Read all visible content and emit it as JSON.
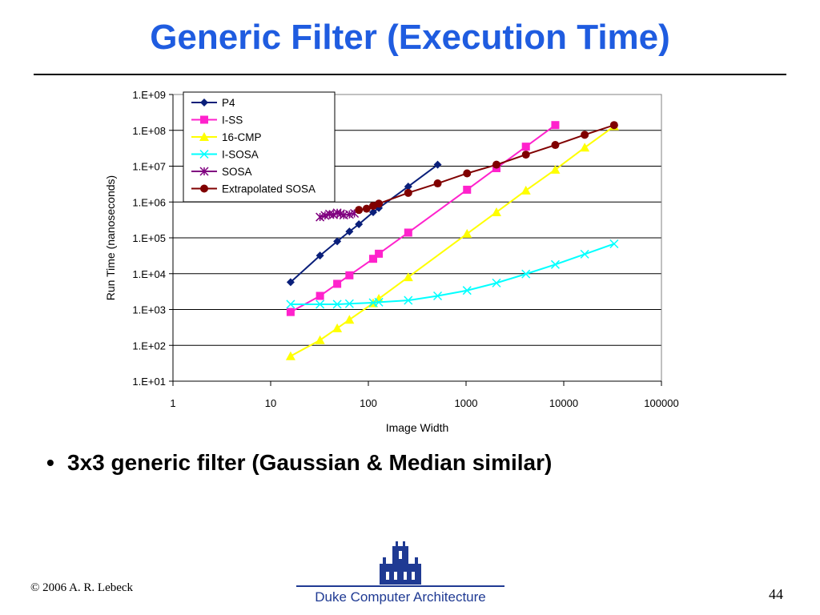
{
  "slide": {
    "title": "Generic Filter (Execution Time)",
    "bullet": "3x3 generic filter (Gaussian & Median similar)",
    "footer_left": "© 2006 A. R. Lebeck",
    "footer_center": "Duke Computer Architecture",
    "page_number": "44"
  },
  "chart_data": {
    "type": "line",
    "title": "",
    "xlabel": "Image Width",
    "ylabel": "Run Time (nanoseconds)",
    "x_scale": "log",
    "y_scale": "log",
    "xlim": [
      1,
      100000
    ],
    "ylim": [
      10,
      1000000000
    ],
    "x_tick_values": [
      1,
      10,
      100,
      1000,
      10000,
      100000
    ],
    "x_tick_labels": [
      "1",
      "10",
      "100",
      "1000",
      "10000",
      "100000"
    ],
    "y_tick_values": [
      10,
      100,
      1000,
      10000,
      100000,
      1000000,
      10000000,
      100000000,
      1000000000
    ],
    "y_tick_labels": [
      "1.E+01",
      "1.E+02",
      "1.E+03",
      "1.E+04",
      "1.E+05",
      "1.E+06",
      "1.E+07",
      "1.E+08",
      "1.E+09"
    ],
    "grid": "horizontal",
    "legend_position": "top-left",
    "series": [
      {
        "name": "P4",
        "color": "#0a1f7a",
        "marker": "diamond",
        "x": [
          16,
          32,
          48,
          64,
          80,
          112,
          128,
          256,
          512
        ],
        "y": [
          5800,
          32000,
          80000,
          150000,
          240000,
          520000,
          680000,
          2700000,
          11000000
        ]
      },
      {
        "name": "I-SS",
        "color": "#ff22cc",
        "marker": "square",
        "x": [
          16,
          32,
          48,
          64,
          112,
          128,
          256,
          1024,
          2048,
          4096,
          8192
        ],
        "y": [
          850,
          2400,
          5200,
          9000,
          26000,
          36000,
          140000,
          2200000,
          8800000,
          35000000,
          140000000
        ]
      },
      {
        "name": "16-CMP",
        "color": "#ffff00",
        "marker": "triangle",
        "x": [
          16,
          32,
          48,
          64,
          112,
          128,
          256,
          1024,
          2048,
          4096,
          8192,
          16384,
          32768
        ],
        "y": [
          50,
          140,
          300,
          520,
          1500,
          2000,
          8000,
          130000,
          520000,
          2100000,
          8000000,
          33000000,
          130000000
        ]
      },
      {
        "name": "I-SOSA",
        "color": "#00ffff",
        "marker": "x",
        "x": [
          16,
          32,
          48,
          64,
          112,
          128,
          256,
          512,
          1024,
          2048,
          4096,
          8192,
          16384,
          32768
        ],
        "y": [
          1400,
          1400,
          1400,
          1450,
          1550,
          1600,
          1800,
          2400,
          3400,
          5500,
          9800,
          18000,
          35000,
          68000
        ]
      },
      {
        "name": "SOSA",
        "color": "#800080",
        "marker": "asterisk",
        "x": [
          32,
          36,
          40,
          44,
          48,
          52,
          56,
          64,
          72
        ],
        "y": [
          380000,
          420000,
          460000,
          440000,
          500000,
          470000,
          430000,
          450000,
          480000
        ]
      },
      {
        "name": "Extrapolated SOSA",
        "color": "#800000",
        "marker": "circle",
        "x": [
          80,
          96,
          112,
          128,
          256,
          512,
          1024,
          2048,
          4096,
          8192,
          16384,
          32768
        ],
        "y": [
          600000,
          650000,
          780000,
          900000,
          1800000,
          3300000,
          6300000,
          11000000,
          21000000,
          39000000,
          75000000,
          140000000
        ]
      }
    ]
  }
}
